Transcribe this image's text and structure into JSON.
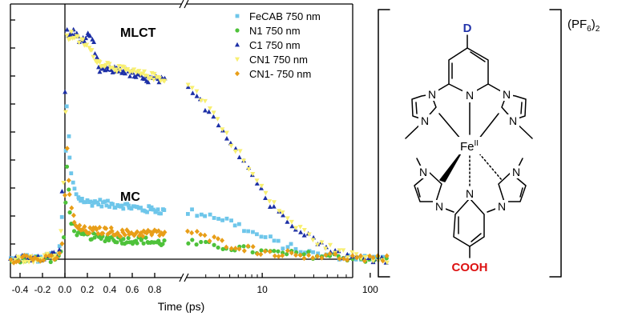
{
  "chart_data": {
    "type": "scatter",
    "xlabel": "Time (ps)",
    "ylabel": "",
    "x_ticks": [
      "-0.4",
      "-0.2",
      "0.0",
      "0.2",
      "0.4",
      "0.6",
      "0.8",
      "10",
      "100"
    ],
    "axis_break": "between 0.9 ps (linear) and ~2 ps (log)",
    "annotations": [
      "MLCT",
      "MC"
    ],
    "legend_position": "top-right",
    "grid": false,
    "series": [
      {
        "name": "FeCAB 750 nm",
        "color": "#6ec6ea",
        "marker": "square",
        "points": [
          [
            -0.45,
            0.0
          ],
          [
            -0.35,
            0.01
          ],
          [
            -0.25,
            0.0
          ],
          [
            -0.15,
            0.01
          ],
          [
            -0.05,
            0.03
          ],
          [
            0.0,
            0.3
          ],
          [
            0.01,
            0.7
          ],
          [
            0.02,
            0.62
          ],
          [
            0.04,
            0.45
          ],
          [
            0.06,
            0.36
          ],
          [
            0.08,
            0.3
          ],
          [
            0.12,
            0.26
          ],
          [
            0.2,
            0.24
          ],
          [
            0.3,
            0.24
          ],
          [
            0.4,
            0.23
          ],
          [
            0.5,
            0.23
          ],
          [
            0.6,
            0.22
          ],
          [
            0.7,
            0.21
          ],
          [
            0.8,
            0.21
          ],
          [
            0.9,
            0.2
          ],
          [
            2.0,
            0.2
          ],
          [
            3.0,
            0.19
          ],
          [
            5.0,
            0.16
          ],
          [
            8.0,
            0.11
          ],
          [
            15.0,
            0.06
          ],
          [
            30.0,
            0.02
          ],
          [
            60.0,
            0.01
          ],
          [
            120.0,
            0.0
          ]
        ]
      },
      {
        "name": "N1 750 nm",
        "color": "#4ec23a",
        "marker": "circle",
        "points": [
          [
            -0.45,
            0.0
          ],
          [
            -0.35,
            0.0
          ],
          [
            -0.25,
            0.0
          ],
          [
            -0.15,
            0.0
          ],
          [
            -0.05,
            0.01
          ],
          [
            0.0,
            0.1
          ],
          [
            0.01,
            0.45
          ],
          [
            0.03,
            0.3
          ],
          [
            0.05,
            0.18
          ],
          [
            0.08,
            0.13
          ],
          [
            0.12,
            0.1
          ],
          [
            0.2,
            0.1
          ],
          [
            0.3,
            0.09
          ],
          [
            0.4,
            0.09
          ],
          [
            0.5,
            0.08
          ],
          [
            0.6,
            0.08
          ],
          [
            0.7,
            0.08
          ],
          [
            0.8,
            0.07
          ],
          [
            0.9,
            0.07
          ],
          [
            2.0,
            0.07
          ],
          [
            3.0,
            0.06
          ],
          [
            5.0,
            0.05
          ],
          [
            10.0,
            0.03
          ],
          [
            20.0,
            0.02
          ],
          [
            50.0,
            0.01
          ],
          [
            100.0,
            0.0
          ]
        ]
      },
      {
        "name": "C1 750 nm",
        "color": "#1c2fa6",
        "marker": "triangle",
        "points": [
          [
            -0.45,
            0.0
          ],
          [
            -0.35,
            0.01
          ],
          [
            -0.25,
            0.0
          ],
          [
            -0.15,
            0.01
          ],
          [
            -0.05,
            0.03
          ],
          [
            0.0,
            0.5
          ],
          [
            0.01,
            1.0
          ],
          [
            0.03,
            0.94
          ],
          [
            0.06,
            0.96
          ],
          [
            0.1,
            0.95
          ],
          [
            0.15,
            0.92
          ],
          [
            0.2,
            0.94
          ],
          [
            0.25,
            0.92
          ],
          [
            0.3,
            0.8
          ],
          [
            0.4,
            0.8
          ],
          [
            0.5,
            0.8
          ],
          [
            0.6,
            0.78
          ],
          [
            0.7,
            0.76
          ],
          [
            0.8,
            0.76
          ],
          [
            0.9,
            0.75
          ],
          [
            2.0,
            0.72
          ],
          [
            3.0,
            0.64
          ],
          [
            5.0,
            0.5
          ],
          [
            8.0,
            0.36
          ],
          [
            12.0,
            0.22
          ],
          [
            20.0,
            0.14
          ],
          [
            35.0,
            0.06
          ],
          [
            60.0,
            0.01
          ],
          [
            120.0,
            0.0
          ]
        ]
      },
      {
        "name": "CN1 750 nm",
        "color": "#f8ef70",
        "marker": "triangle-down",
        "points": [
          [
            -0.45,
            0.0
          ],
          [
            -0.35,
            0.0
          ],
          [
            -0.25,
            0.0
          ],
          [
            -0.15,
            0.01
          ],
          [
            -0.05,
            0.02
          ],
          [
            0.0,
            0.4
          ],
          [
            0.01,
            0.97
          ],
          [
            0.03,
            0.93
          ],
          [
            0.06,
            0.95
          ],
          [
            0.1,
            0.93
          ],
          [
            0.15,
            0.92
          ],
          [
            0.2,
            0.9
          ],
          [
            0.3,
            0.83
          ],
          [
            0.4,
            0.82
          ],
          [
            0.5,
            0.8
          ],
          [
            0.6,
            0.79
          ],
          [
            0.7,
            0.78
          ],
          [
            0.8,
            0.77
          ],
          [
            0.9,
            0.76
          ],
          [
            2.0,
            0.74
          ],
          [
            3.0,
            0.66
          ],
          [
            5.0,
            0.5
          ],
          [
            8.0,
            0.36
          ],
          [
            12.0,
            0.24
          ],
          [
            20.0,
            0.14
          ],
          [
            35.0,
            0.06
          ],
          [
            60.0,
            0.02
          ],
          [
            120.0,
            0.0
          ]
        ]
      },
      {
        "name": "CN1- 750 nm",
        "color": "#e89e18",
        "marker": "diamond",
        "points": [
          [
            -0.45,
            0.0
          ],
          [
            -0.35,
            0.01
          ],
          [
            -0.25,
            0.0
          ],
          [
            -0.15,
            0.0
          ],
          [
            -0.05,
            0.01
          ],
          [
            0.0,
            0.1
          ],
          [
            0.01,
            0.55
          ],
          [
            0.03,
            0.35
          ],
          [
            0.05,
            0.24
          ],
          [
            0.08,
            0.16
          ],
          [
            0.12,
            0.13
          ],
          [
            0.2,
            0.12
          ],
          [
            0.3,
            0.12
          ],
          [
            0.4,
            0.12
          ],
          [
            0.5,
            0.11
          ],
          [
            0.6,
            0.11
          ],
          [
            0.7,
            0.11
          ],
          [
            0.8,
            0.11
          ],
          [
            0.9,
            0.11
          ],
          [
            2.0,
            0.12
          ],
          [
            3.0,
            0.09
          ],
          [
            5.0,
            0.06
          ],
          [
            10.0,
            0.03
          ],
          [
            20.0,
            0.02
          ],
          [
            50.0,
            0.01
          ],
          [
            100.0,
            0.0
          ]
        ]
      }
    ]
  },
  "structure": {
    "counter_ion": "(PF",
    "counter_ion_sub": "6",
    "counter_ion_close": ")",
    "counter_ion_count": "2",
    "donor_label": "D",
    "acceptor_label": "COOH",
    "metal": "Fe",
    "metal_ox": "II",
    "N": "N",
    "donor_color": "#2233aa",
    "acceptor_color": "#dd1111"
  }
}
